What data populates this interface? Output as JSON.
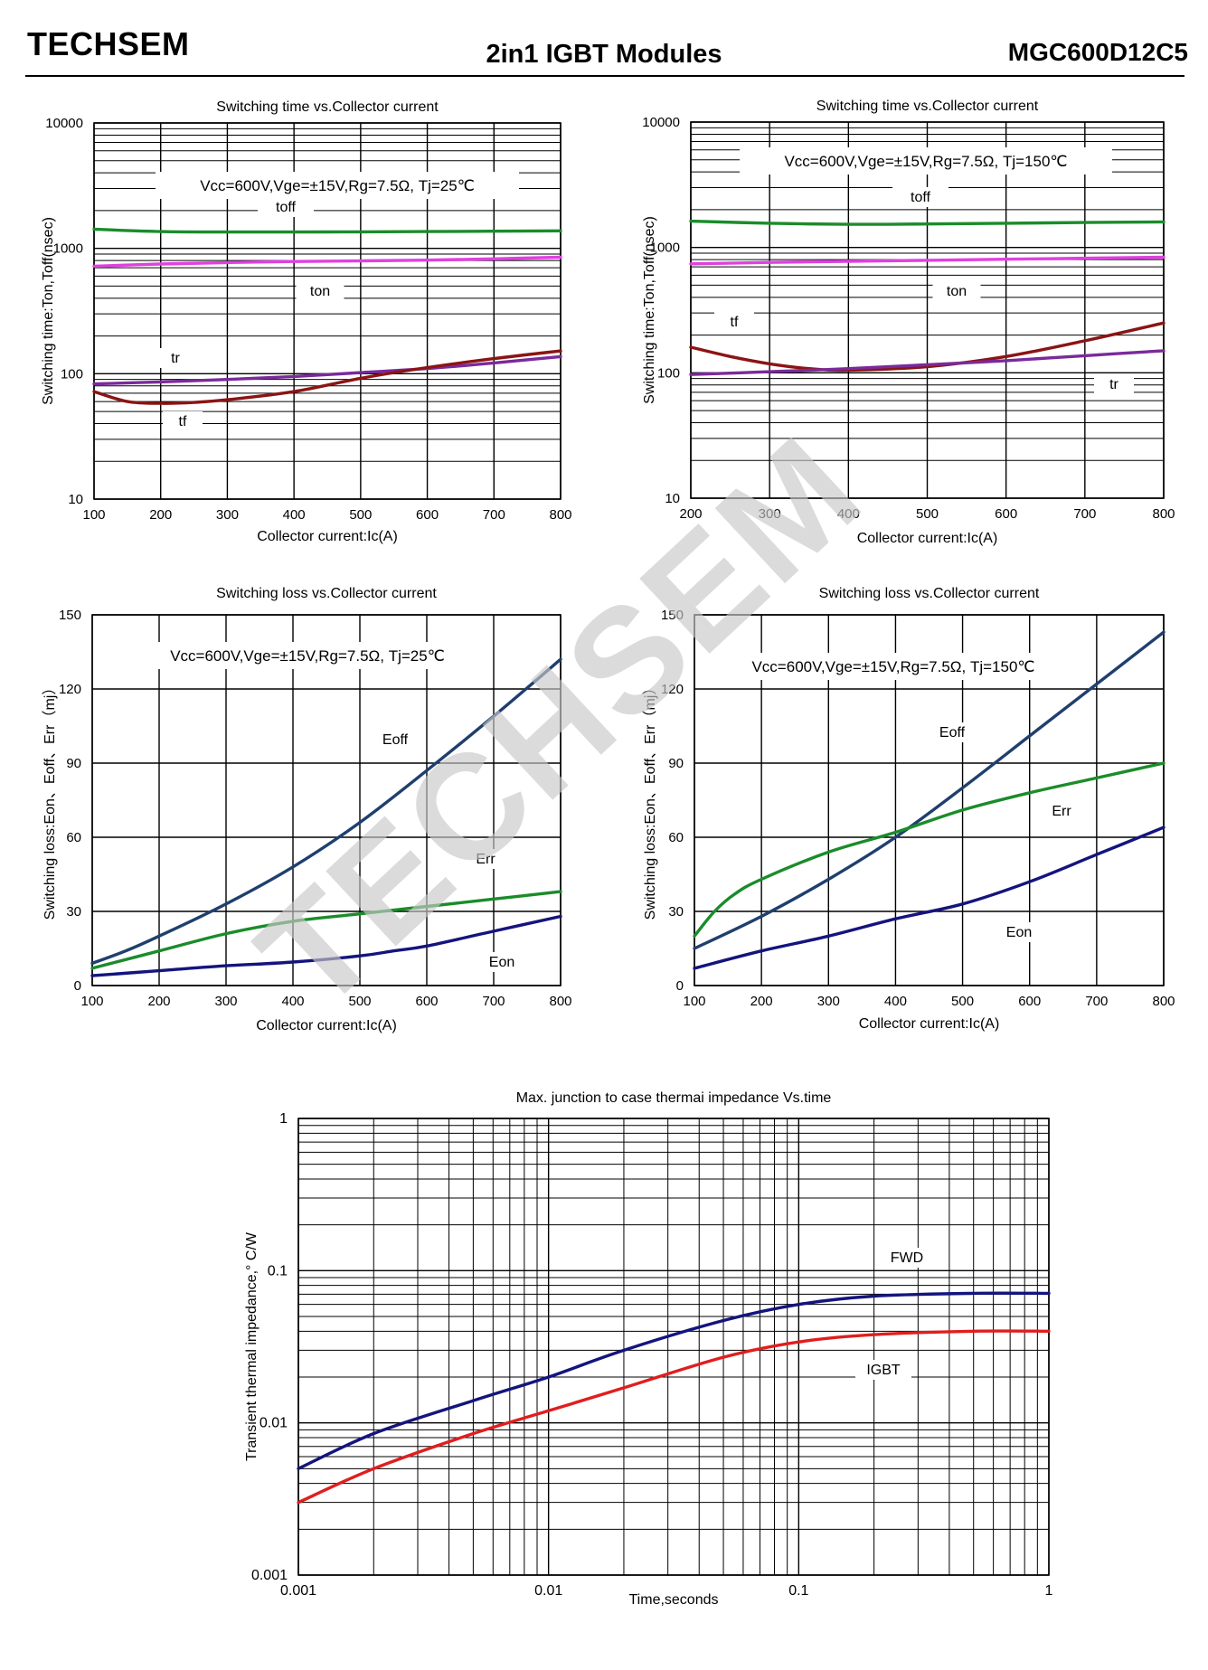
{
  "header": {
    "brand": "TECHSEM",
    "title": "2in1  IGBT  Modules",
    "part_number": "MGC600D12C5"
  },
  "watermark": "TECHSEM",
  "colors": {
    "toff": "#1a8c2a",
    "ton": "#e040e0",
    "tr": "#7a2a9a",
    "tf": "#8b1414",
    "eoff": "#1f3f6e",
    "err": "#1a8c2a",
    "eon": "#14147e",
    "fwd": "#14147e",
    "igbt": "#e01e1e",
    "grid": "#000000"
  },
  "chart_data": [
    {
      "id": "st25",
      "type": "line",
      "title": "Switching time vs.Collector current",
      "xlabel": "Collector current:Ic(A)",
      "ylabel": "Switching time:Ton,Toff(nsec)",
      "annotation": "Vcc=600V,Vge=±15V,Rg=7.5Ω,  Tj=25℃",
      "xscale": "linear",
      "yscale": "log",
      "xlim": [
        100,
        800
      ],
      "ylim": [
        10,
        10000
      ],
      "xticks": [
        "100",
        "200",
        "300",
        "400",
        "500",
        "600",
        "700",
        "800"
      ],
      "yticks": [
        "10",
        "100",
        "1000",
        "10000"
      ],
      "series": [
        {
          "name": "toff",
          "label": "toff",
          "color_key": "toff",
          "x": [
            100,
            200,
            300,
            400,
            500,
            600,
            700,
            800
          ],
          "y": [
            1420,
            1360,
            1350,
            1350,
            1355,
            1360,
            1370,
            1380
          ]
        },
        {
          "name": "ton",
          "label": "ton",
          "color_key": "ton",
          "x": [
            100,
            200,
            300,
            400,
            500,
            600,
            700,
            800
          ],
          "y": [
            720,
            750,
            770,
            785,
            795,
            805,
            825,
            850
          ]
        },
        {
          "name": "tr",
          "label": "tr",
          "color_key": "tr",
          "x": [
            100,
            200,
            300,
            400,
            500,
            600,
            700,
            800
          ],
          "y": [
            83,
            86,
            90,
            95,
            102,
            110,
            122,
            137
          ]
        },
        {
          "name": "tf",
          "label": "tf",
          "color_key": "tf",
          "x": [
            100,
            150,
            200,
            250,
            300,
            400,
            500,
            600,
            700,
            800
          ],
          "y": [
            72,
            60,
            58,
            59,
            62,
            72,
            92,
            112,
            132,
            152
          ]
        }
      ]
    },
    {
      "id": "st150",
      "type": "line",
      "title": "Switching time vs.Collector current",
      "xlabel": "Collector current:Ic(A)",
      "ylabel": "Switching time:Ton,Toff(nsec)",
      "annotation": "Vcc=600V,Vge=±15V,Rg=7.5Ω,  Tj=150℃",
      "xscale": "linear",
      "yscale": "log",
      "xlim": [
        200,
        800
      ],
      "ylim": [
        10,
        10000
      ],
      "xticks": [
        "200",
        "300",
        "400",
        "500",
        "600",
        "700",
        "800"
      ],
      "yticks": [
        "10",
        "100",
        "1000",
        "10000"
      ],
      "series": [
        {
          "name": "toff",
          "label": "toff",
          "color_key": "toff",
          "x": [
            200,
            300,
            400,
            500,
            600,
            700,
            800
          ],
          "y": [
            1620,
            1560,
            1530,
            1540,
            1560,
            1580,
            1600
          ]
        },
        {
          "name": "ton",
          "label": "ton",
          "color_key": "ton",
          "x": [
            200,
            300,
            400,
            500,
            600,
            700,
            800
          ],
          "y": [
            740,
            760,
            775,
            790,
            805,
            820,
            835
          ]
        },
        {
          "name": "tf",
          "label": "tf",
          "color_key": "tf",
          "x": [
            200,
            250,
            300,
            350,
            400,
            500,
            600,
            700,
            800
          ],
          "y": [
            160,
            135,
            118,
            108,
            105,
            112,
            135,
            180,
            250
          ]
        },
        {
          "name": "tr",
          "label": "tr",
          "color_key": "tr",
          "x": [
            200,
            300,
            400,
            500,
            600,
            700,
            800
          ],
          "y": [
            97,
            102,
            108,
            116,
            125,
            137,
            150
          ]
        }
      ]
    },
    {
      "id": "sl25",
      "type": "line",
      "title": "Switching loss vs.Collector current",
      "xlabel": "Collector current:Ic(A)",
      "ylabel": "Switching loss:Eon、Eoff、Err（mj）",
      "annotation": "Vcc=600V,Vge=±15V,Rg=7.5Ω,  Tj=25℃",
      "xscale": "linear",
      "yscale": "linear",
      "xlim": [
        100,
        800
      ],
      "ylim": [
        0,
        150
      ],
      "xticks": [
        "100",
        "200",
        "300",
        "400",
        "500",
        "600",
        "700",
        "800"
      ],
      "yticks": [
        "0",
        "30",
        "60",
        "90",
        "120",
        "150"
      ],
      "series": [
        {
          "name": "Eoff",
          "label": "Eoff",
          "color_key": "eoff",
          "x": [
            100,
            150,
            200,
            300,
            400,
            500,
            600,
            700,
            800
          ],
          "y": [
            9,
            14,
            20,
            33,
            48,
            66,
            87,
            109,
            132
          ]
        },
        {
          "name": "Err",
          "label": "Err",
          "color_key": "err",
          "x": [
            100,
            200,
            300,
            400,
            500,
            600,
            700,
            800
          ],
          "y": [
            7,
            14,
            21,
            26,
            29,
            32,
            35,
            38
          ]
        },
        {
          "name": "Eon",
          "label": "Eon",
          "color_key": "eon",
          "x": [
            100,
            200,
            300,
            400,
            500,
            550,
            600,
            700,
            800
          ],
          "y": [
            4,
            6,
            8,
            9.5,
            12,
            14,
            16,
            22,
            28
          ]
        }
      ]
    },
    {
      "id": "sl150",
      "type": "line",
      "title": "Switching loss vs.Collector current",
      "xlabel": "Collector current:Ic(A)",
      "ylabel": "Switching loss:Eon、Eoff、Err（mj）",
      "annotation": "Vcc=600V,Vge=±15V,Rg=7.5Ω,  Tj=150℃",
      "xscale": "linear",
      "yscale": "linear",
      "xlim": [
        100,
        800
      ],
      "ylim": [
        0,
        150
      ],
      "xticks": [
        "100",
        "200",
        "300",
        "400",
        "500",
        "600",
        "700",
        "800"
      ],
      "yticks": [
        "0",
        "30",
        "60",
        "90",
        "120",
        "150"
      ],
      "series": [
        {
          "name": "Eoff",
          "label": "Eoff",
          "color_key": "eoff",
          "x": [
            100,
            200,
            300,
            400,
            500,
            600,
            700,
            800
          ],
          "y": [
            15,
            28,
            43,
            60,
            80,
            101,
            122,
            143
          ]
        },
        {
          "name": "Err",
          "label": "Err",
          "color_key": "err",
          "x": [
            100,
            130,
            160,
            200,
            300,
            400,
            500,
            600,
            700,
            800
          ],
          "y": [
            20,
            30,
            37,
            43,
            54,
            62,
            71,
            78,
            84,
            90
          ]
        },
        {
          "name": "Eon",
          "label": "Eon",
          "color_key": "eon",
          "x": [
            100,
            200,
            300,
            400,
            500,
            600,
            700,
            800
          ],
          "y": [
            7,
            14,
            20,
            27,
            33,
            42,
            53,
            64
          ]
        }
      ]
    },
    {
      "id": "zth",
      "type": "line",
      "title": "Max. junction to case thermai impedance Vs.time",
      "xlabel": "Time,seconds",
      "ylabel": "Transient thermal impedance,° C/W",
      "xscale": "log",
      "yscale": "log",
      "xlim": [
        0.001,
        1
      ],
      "ylim": [
        0.001,
        1
      ],
      "xticks": [
        "0.001",
        "0.01",
        "0.1",
        "1"
      ],
      "yticks": [
        "0.001",
        "0.01",
        "0.1",
        "1"
      ],
      "series": [
        {
          "name": "FWD",
          "label": "FWD",
          "color_key": "fwd",
          "x": [
            0.001,
            0.002,
            0.005,
            0.01,
            0.02,
            0.05,
            0.1,
            0.2,
            0.5,
            1
          ],
          "y": [
            0.005,
            0.0085,
            0.014,
            0.02,
            0.03,
            0.047,
            0.06,
            0.068,
            0.071,
            0.071
          ]
        },
        {
          "name": "IGBT",
          "label": "IGBT",
          "color_key": "igbt",
          "x": [
            0.001,
            0.002,
            0.005,
            0.01,
            0.02,
            0.05,
            0.1,
            0.2,
            0.5,
            1
          ],
          "y": [
            0.003,
            0.005,
            0.0085,
            0.012,
            0.017,
            0.027,
            0.034,
            0.038,
            0.04,
            0.04
          ]
        }
      ]
    }
  ]
}
